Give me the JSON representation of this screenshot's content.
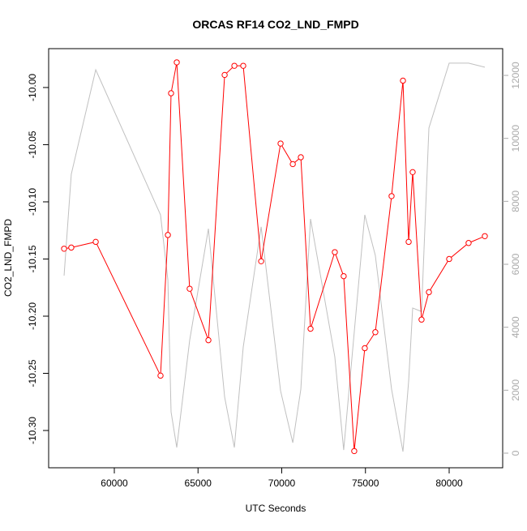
{
  "chart_data": {
    "type": "line",
    "title": "ORCAS RF14 CO2_LND_FMPD",
    "xlabel": "UTC Seconds",
    "ylabel": "CO2_LND_FMPD",
    "x": [
      57000,
      57430,
      58890,
      62760,
      63200,
      63390,
      63730,
      64500,
      65620,
      66590,
      67170,
      67700,
      68770,
      69930,
      70660,
      71140,
      71720,
      73170,
      73700,
      74330,
      74960,
      75590,
      76560,
      77240,
      77580,
      77820,
      78350,
      78790,
      80000,
      81160,
      82130
    ],
    "series": [
      {
        "color": "#ff0000",
        "values": [
          -10.141,
          -10.14,
          -10.135,
          -10.252,
          -10.129,
          -10.005,
          -9.978,
          -10.176,
          -10.221,
          -9.989,
          -9.981,
          -9.981,
          -10.152,
          -10.049,
          -10.067,
          -10.061,
          -10.211,
          -10.144,
          -10.165,
          -10.318,
          -10.228,
          -10.214,
          -10.095,
          -9.994,
          -10.135,
          -10.074,
          -10.203,
          -10.179,
          -10.15,
          -10.136,
          -10.13
        ]
      },
      {
        "color": "#c0c0c0",
        "axis": "y2",
        "values": [
          5640,
          8860,
          12180,
          7570,
          5500,
          1310,
          180,
          3580,
          7130,
          1780,
          180,
          3370,
          7190,
          1980,
          330,
          2030,
          7440,
          3060,
          100,
          3840,
          7570,
          6280,
          2030,
          50,
          2290,
          4610,
          4500,
          10330,
          12390,
          12390,
          12260
        ]
      }
    ],
    "xlim": [
      56078,
      83196
    ],
    "xticks": [
      60000,
      65000,
      70000,
      75000,
      80000
    ],
    "ylim": [
      -10.3326,
      -9.966
    ],
    "yticks": [
      {
        "value": -10.3,
        "label": "-10.30"
      },
      -10.25,
      {
        "value": -10.2,
        "label": "-10.20"
      },
      -10.15,
      {
        "value": -10.1,
        "label": "-10.10"
      },
      -10.05,
      {
        "value": -10,
        "label": "-10.00"
      }
    ],
    "y2lim": [
      -464,
      12850
    ],
    "y2ticks": [
      0,
      2000,
      4000,
      6000,
      8000,
      10000,
      12000
    ]
  }
}
